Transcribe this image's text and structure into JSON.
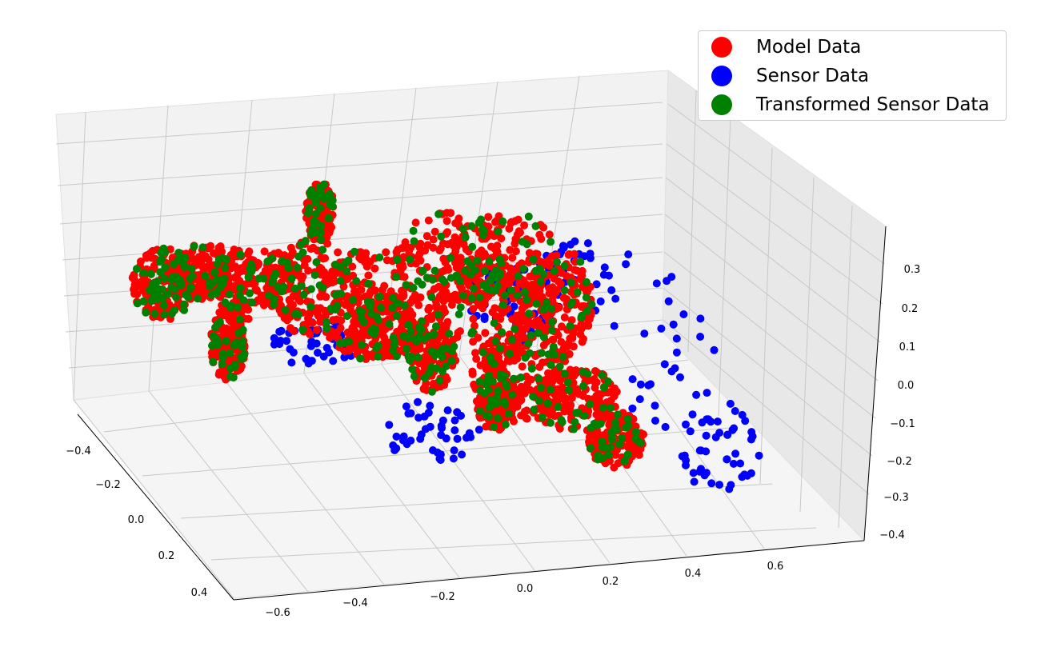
{
  "chart_data": {
    "type": "scatter",
    "projection": "3d",
    "title": "",
    "xlabel": "",
    "ylabel": "",
    "zlabel": "",
    "xlim": [
      -0.7,
      0.75
    ],
    "ylim": [
      -0.45,
      0.5
    ],
    "zlim": [
      -0.42,
      0.36
    ],
    "x_ticks": [
      "−0.6",
      "−0.4",
      "−0.2",
      "0.0",
      "0.2",
      "0.4",
      "0.6"
    ],
    "y_ticks": [
      "−0.4",
      "−0.2",
      "0.0",
      "0.2",
      "0.4"
    ],
    "z_ticks": [
      "−0.4",
      "−0.3",
      "−0.2",
      "−0.1",
      "0.0",
      "0.1",
      "0.2",
      "0.3"
    ],
    "grid": true,
    "legend_position": "top-right",
    "series": [
      {
        "name": "Model Data",
        "color": "#ff0000",
        "shape": "animal-body",
        "sample_points": [
          [
            -0.55,
            -0.3,
            0.15
          ],
          [
            -0.3,
            -0.2,
            0.1
          ],
          [
            0.0,
            -0.1,
            0.05
          ],
          [
            0.2,
            0.0,
            0.15
          ],
          [
            0.35,
            0.2,
            -0.2
          ]
        ]
      },
      {
        "name": "Sensor Data",
        "color": "#0000ff",
        "shape": "animal-body-offset",
        "sample_points": [
          [
            0.3,
            -0.2,
            -0.15
          ],
          [
            0.5,
            0.0,
            -0.1
          ],
          [
            0.6,
            0.2,
            -0.25
          ],
          [
            0.2,
            -0.1,
            0.0
          ],
          [
            0.45,
            0.3,
            -0.3
          ]
        ]
      },
      {
        "name": "Transformed Sensor Data",
        "color": "#008000",
        "shape": "animal-body",
        "sample_points": [
          [
            -0.55,
            -0.3,
            0.15
          ],
          [
            -0.3,
            -0.2,
            0.1
          ],
          [
            0.0,
            -0.1,
            0.05
          ],
          [
            0.2,
            0.0,
            0.15
          ],
          [
            0.35,
            0.2,
            -0.2
          ]
        ]
      }
    ]
  },
  "legend": {
    "items": [
      {
        "label": "Model Data",
        "color": "#ff0000"
      },
      {
        "label": "Sensor Data",
        "color": "#0000ff"
      },
      {
        "label": "Transformed Sensor Data",
        "color": "#008000"
      }
    ]
  }
}
